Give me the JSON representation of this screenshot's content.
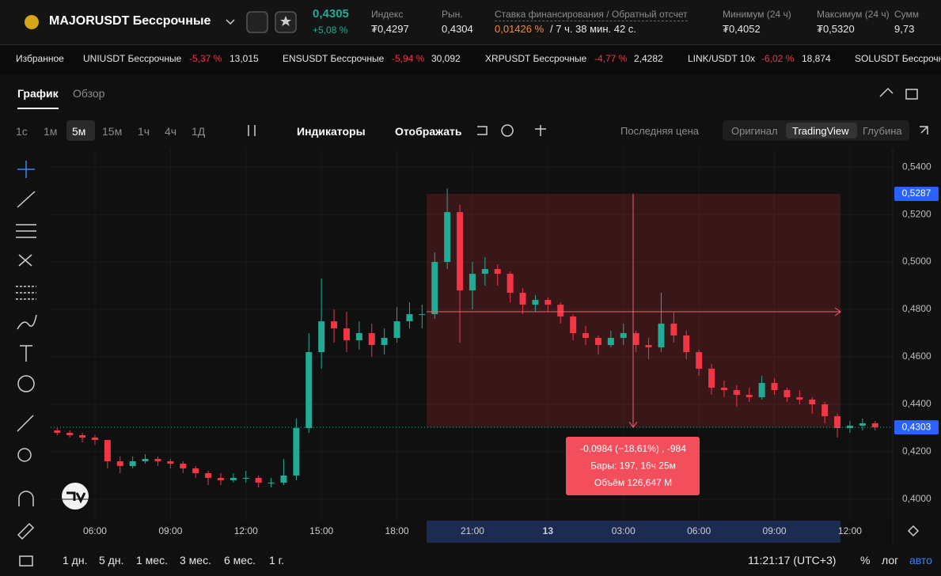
{
  "header": {
    "symbol": "MAJORUSDT Бессрочные",
    "price": "0,4305",
    "change": "+5,08 %",
    "stats": [
      {
        "label": "Индекс",
        "value": "₮0,4297"
      },
      {
        "label": "Рын.",
        "value": "0,4304"
      },
      {
        "label": "Ставка финансирования / Обратный отсчет",
        "value": "0,01426 %",
        "countdown": "/ 7 ч. 38 мин. 42 с."
      },
      {
        "label": "Минимум (24 ч)",
        "value": "₮0,4052"
      },
      {
        "label": "Максимум (24 ч)",
        "value": "₮0,5320"
      },
      {
        "label": "Сумм",
        "value": "9,73"
      }
    ]
  },
  "tickers": {
    "title": "Избранное",
    "items": [
      {
        "name": "UNIUSDT Бессрочные",
        "change": "-5,37 %",
        "price": "13,015"
      },
      {
        "name": "ENSUSDT Бессрочные",
        "change": "-5,94 %",
        "price": "30,092"
      },
      {
        "name": "XRPUSDT Бессрочные",
        "change": "-4,77 %",
        "price": "2,4282"
      },
      {
        "name": "LINK/USDT 10x",
        "change": "-6,02 %",
        "price": "18,874"
      },
      {
        "name": "SOLUSDT Бессрочные",
        "change": "",
        "price": ""
      }
    ]
  },
  "tabs": [
    "График",
    "Обзор"
  ],
  "toolbar": {
    "intervals": [
      "1с",
      "1м",
      "5м",
      "15м",
      "1ч",
      "4ч",
      "1Д"
    ],
    "indicators": "Индикаторы",
    "display": "Отображать",
    "price_type": "Последняя цена",
    "views": [
      "Оригинал",
      "TradingView",
      "Глубина"
    ]
  },
  "bottom_bar": {
    "ranges": [
      "1 дн.",
      "5 дн.",
      "1 мес.",
      "3 мес.",
      "6 мес.",
      "1 г."
    ],
    "time": "11:21:17 (UTC+3)",
    "percent": "%",
    "log": "лог",
    "auto": "авто"
  },
  "chart_data": {
    "type": "candlestick",
    "up_color": "#22ab94",
    "down_color": "#f23645",
    "x": [
      4.5,
      5,
      5.5,
      6,
      6.5,
      7,
      7.5,
      8,
      8.5,
      9,
      9.5,
      10,
      10.5,
      11,
      11.5,
      12,
      12.5,
      13,
      13.5,
      14,
      14.5,
      15,
      15.5,
      16,
      16.5,
      17,
      17.5,
      18,
      18.5,
      19,
      19.5,
      20,
      20.5,
      21,
      21.5,
      22,
      22.5,
      23,
      23.5,
      24,
      24.5,
      25,
      25.5,
      26,
      26.5,
      27,
      27.5,
      28,
      28.5,
      29,
      29.5,
      30,
      30.5,
      31,
      31.5,
      32,
      32.5,
      33,
      33.5,
      34,
      34.5,
      35,
      35.5,
      36,
      36.5,
      37
    ],
    "ohlc": [
      [
        0.429,
        0.43,
        0.427,
        0.428
      ],
      [
        0.428,
        0.429,
        0.426,
        0.427
      ],
      [
        0.427,
        0.428,
        0.424,
        0.426
      ],
      [
        0.426,
        0.427,
        0.423,
        0.425
      ],
      [
        0.425,
        0.425,
        0.413,
        0.416
      ],
      [
        0.416,
        0.418,
        0.411,
        0.414
      ],
      [
        0.414,
        0.418,
        0.413,
        0.416
      ],
      [
        0.416,
        0.419,
        0.415,
        0.417
      ],
      [
        0.417,
        0.418,
        0.414,
        0.416
      ],
      [
        0.416,
        0.417,
        0.413,
        0.415
      ],
      [
        0.415,
        0.416,
        0.411,
        0.413
      ],
      [
        0.413,
        0.414,
        0.409,
        0.411
      ],
      [
        0.411,
        0.412,
        0.406,
        0.409
      ],
      [
        0.409,
        0.411,
        0.406,
        0.408
      ],
      [
        0.408,
        0.411,
        0.407,
        0.409
      ],
      [
        0.409,
        0.412,
        0.407,
        0.409
      ],
      [
        0.409,
        0.41,
        0.405,
        0.407
      ],
      [
        0.407,
        0.409,
        0.405,
        0.407
      ],
      [
        0.407,
        0.417,
        0.406,
        0.41
      ],
      [
        0.41,
        0.434,
        0.408,
        0.43
      ],
      [
        0.43,
        0.47,
        0.428,
        0.462
      ],
      [
        0.462,
        0.493,
        0.455,
        0.475
      ],
      [
        0.475,
        0.48,
        0.466,
        0.472
      ],
      [
        0.472,
        0.479,
        0.462,
        0.467
      ],
      [
        0.467,
        0.475,
        0.463,
        0.47
      ],
      [
        0.47,
        0.474,
        0.46,
        0.465
      ],
      [
        0.465,
        0.472,
        0.461,
        0.468
      ],
      [
        0.468,
        0.481,
        0.466,
        0.475
      ],
      [
        0.475,
        0.483,
        0.472,
        0.478
      ],
      [
        0.478,
        0.482,
        0.472,
        0.478
      ],
      [
        0.478,
        0.504,
        0.476,
        0.5
      ],
      [
        0.5,
        0.531,
        0.497,
        0.521
      ],
      [
        0.521,
        0.524,
        0.466,
        0.488
      ],
      [
        0.488,
        0.5,
        0.48,
        0.495
      ],
      [
        0.495,
        0.502,
        0.49,
        0.497
      ],
      [
        0.497,
        0.499,
        0.49,
        0.495
      ],
      [
        0.495,
        0.496,
        0.483,
        0.487
      ],
      [
        0.487,
        0.489,
        0.478,
        0.482
      ],
      [
        0.482,
        0.486,
        0.479,
        0.484
      ],
      [
        0.484,
        0.485,
        0.479,
        0.482
      ],
      [
        0.482,
        0.483,
        0.474,
        0.477
      ],
      [
        0.477,
        0.478,
        0.467,
        0.47
      ],
      [
        0.47,
        0.473,
        0.465,
        0.468
      ],
      [
        0.468,
        0.469,
        0.461,
        0.465
      ],
      [
        0.465,
        0.471,
        0.464,
        0.468
      ],
      [
        0.468,
        0.474,
        0.465,
        0.47
      ],
      [
        0.47,
        0.471,
        0.462,
        0.465
      ],
      [
        0.465,
        0.468,
        0.459,
        0.464
      ],
      [
        0.464,
        0.487,
        0.462,
        0.474
      ],
      [
        0.474,
        0.479,
        0.466,
        0.469
      ],
      [
        0.469,
        0.471,
        0.459,
        0.462
      ],
      [
        0.462,
        0.463,
        0.452,
        0.455
      ],
      [
        0.455,
        0.457,
        0.444,
        0.447
      ],
      [
        0.447,
        0.45,
        0.443,
        0.446
      ],
      [
        0.446,
        0.448,
        0.439,
        0.444
      ],
      [
        0.444,
        0.447,
        0.441,
        0.443
      ],
      [
        0.443,
        0.452,
        0.442,
        0.449
      ],
      [
        0.449,
        0.451,
        0.444,
        0.446
      ],
      [
        0.446,
        0.447,
        0.441,
        0.443
      ],
      [
        0.443,
        0.446,
        0.44,
        0.442
      ],
      [
        0.442,
        0.443,
        0.436,
        0.44
      ],
      [
        0.44,
        0.441,
        0.432,
        0.435
      ],
      [
        0.435,
        0.436,
        0.426,
        0.43
      ],
      [
        0.43,
        0.433,
        0.428,
        0.431
      ],
      [
        0.431,
        0.434,
        0.429,
        0.432
      ],
      [
        0.432,
        0.433,
        0.429,
        0.4303
      ]
    ],
    "xlim": [
      4.24,
      37.7
    ],
    "xticks": [
      {
        "value": 6,
        "label": "06:00"
      },
      {
        "value": 9,
        "label": "09:00"
      },
      {
        "value": 12,
        "label": "12:00"
      },
      {
        "value": 15,
        "label": "15:00"
      },
      {
        "value": 18,
        "label": "18:00"
      },
      {
        "value": 21,
        "label": "21:00"
      },
      {
        "value": 24,
        "label": "13"
      },
      {
        "value": 27,
        "label": "03:00"
      },
      {
        "value": 30,
        "label": "06:00"
      },
      {
        "value": 33,
        "label": "09:00"
      },
      {
        "value": 36,
        "label": "12:00"
      }
    ],
    "ylim": [
      0.391,
      0.5477
    ],
    "yticks": [
      {
        "value": 0.54,
        "label": "0,5400"
      },
      {
        "value": 0.52,
        "label": "0,5200"
      },
      {
        "value": 0.5,
        "label": "0,5000"
      },
      {
        "value": 0.48,
        "label": "0,4800"
      },
      {
        "value": 0.46,
        "label": "0,4600"
      },
      {
        "value": 0.44,
        "label": "0,4400"
      },
      {
        "value": 0.42,
        "label": "0,4200"
      },
      {
        "value": 0.4,
        "label": "0,4000"
      }
    ],
    "last_price": {
      "value": 0.4303,
      "label": "0,4303"
    },
    "measure": {
      "high": {
        "value": 0.5287,
        "label": "0,5287"
      },
      "low": 0.4303,
      "lines": [
        "-0,0984 (−18,61%) , -984",
        "Бары: 197, 16ч 25м",
        "Объём 126,647 M"
      ]
    },
    "grid": true
  }
}
